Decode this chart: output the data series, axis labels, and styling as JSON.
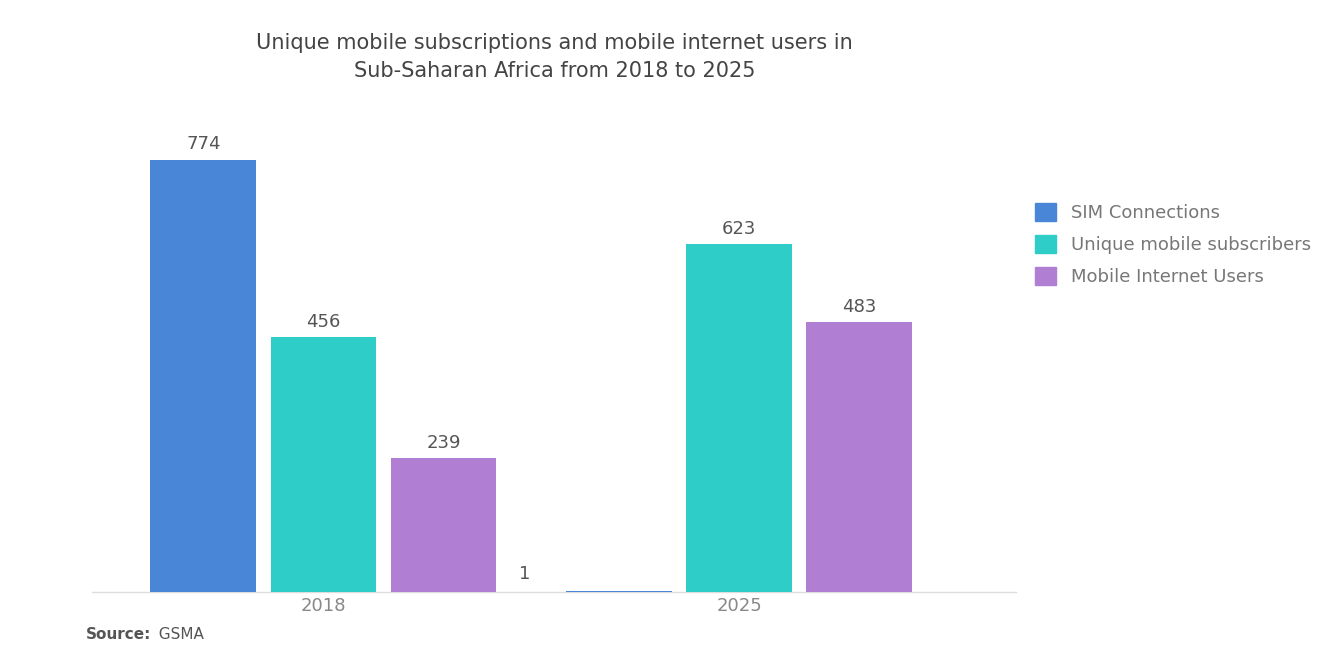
{
  "title": "Unique mobile subscriptions and mobile internet users in\nSub-Saharan Africa from 2018 to 2025",
  "title_fontsize": 15,
  "years": [
    "2018",
    "2025"
  ],
  "series": [
    {
      "name": "SIM Connections",
      "values": [
        774,
        1
      ],
      "color": "#4A86D8"
    },
    {
      "name": "Unique mobile subscribers",
      "values": [
        456,
        623
      ],
      "color": "#2ECDC8"
    },
    {
      "name": "Mobile Internet Users",
      "values": [
        239,
        483
      ],
      "color": "#B07FD4"
    }
  ],
  "source_label_bold": "Source:",
  "source_label_normal": "  GSMA",
  "background_color": "#FFFFFF",
  "bar_width": 0.13,
  "ylim": [
    0,
    870
  ],
  "label_fontsize": 13,
  "tick_fontsize": 13,
  "legend_fontsize": 13,
  "value_label_color": "#555555",
  "tick_color": "#888888"
}
